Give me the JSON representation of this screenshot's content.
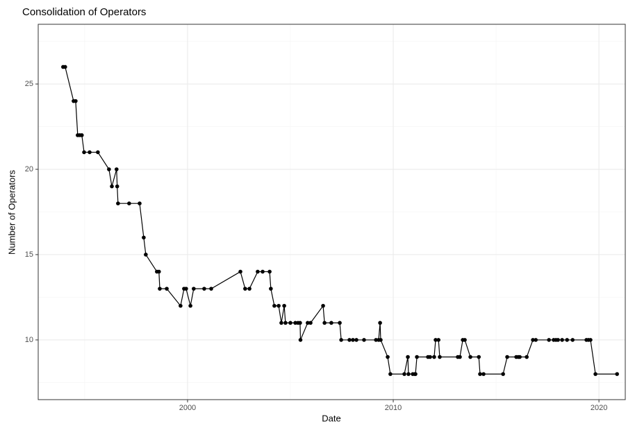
{
  "chart_data": {
    "type": "line",
    "title": "Consolidation of Operators",
    "x_label": "Date",
    "y_label": "Number of Operators",
    "x": [
      1993.95,
      1994.05,
      1994.46,
      1994.56,
      1994.66,
      1994.76,
      1994.86,
      1994.97,
      1995.24,
      1995.64,
      1996.18,
      1996.32,
      1996.55,
      1996.58,
      1996.62,
      1997.16,
      1997.67,
      1997.87,
      1997.97,
      1998.51,
      1998.61,
      1998.65,
      1998.99,
      1999.66,
      1999.83,
      1999.93,
      2000.14,
      2000.3,
      2000.81,
      2001.15,
      2002.57,
      2002.8,
      2003.01,
      2003.41,
      2003.65,
      2003.99,
      2004.05,
      2004.22,
      2004.43,
      2004.56,
      2004.7,
      2004.76,
      2005.0,
      2005.24,
      2005.37,
      2005.47,
      2005.49,
      2005.84,
      2005.98,
      2006.59,
      2006.66,
      2006.99,
      2007.4,
      2007.47,
      2007.87,
      2008.04,
      2008.21,
      2008.58,
      2009.16,
      2009.29,
      2009.36,
      2009.39,
      2009.73,
      2009.86,
      2010.54,
      2010.71,
      2010.74,
      2010.95,
      2011.05,
      2011.08,
      2011.15,
      2011.69,
      2011.79,
      2011.99,
      2012.06,
      2012.2,
      2012.26,
      2013.14,
      2013.24,
      2013.38,
      2013.48,
      2013.75,
      2014.16,
      2014.22,
      2014.39,
      2015.34,
      2015.54,
      2015.98,
      2016.08,
      2016.15,
      2016.49,
      2016.79,
      2016.93,
      2017.57,
      2017.8,
      2017.91,
      2018.01,
      2018.21,
      2018.45,
      2018.72,
      2019.39,
      2019.49,
      2019.59,
      2019.83,
      2020.88
    ],
    "values": [
      26,
      26,
      24,
      24,
      22,
      22,
      22,
      21,
      21,
      21,
      20,
      19,
      20,
      19,
      18,
      18,
      18,
      16,
      15,
      14,
      14,
      13,
      13,
      12,
      13,
      13,
      12,
      13,
      13,
      13,
      14,
      13,
      13,
      14,
      14,
      14,
      13,
      12,
      12,
      11,
      12,
      11,
      11,
      11,
      11,
      11,
      10,
      11,
      11,
      12,
      11,
      11,
      11,
      10,
      10,
      10,
      10,
      10,
      10,
      10,
      11,
      10,
      9,
      8,
      8,
      9,
      8,
      8,
      8,
      8,
      9,
      9,
      9,
      9,
      10,
      10,
      9,
      9,
      9,
      10,
      10,
      9,
      9,
      8,
      8,
      8,
      9,
      9,
      9,
      9,
      9,
      10,
      10,
      10,
      10,
      10,
      10,
      10,
      10,
      10,
      10,
      10,
      10,
      8,
      8
    ],
    "color": "#000000",
    "xlim": [
      1992.74,
      2021.28
    ],
    "xticks": [
      2000,
      2010,
      2020
    ],
    "ylim": [
      6.5,
      28.5
    ],
    "yticks": [
      10,
      15,
      20,
      25
    ],
    "x_minor_grid": [
      1995,
      2005,
      2015
    ],
    "y_minor_grid": [
      7.5,
      12.5,
      17.5,
      22.5,
      27.5
    ],
    "grid": true
  }
}
